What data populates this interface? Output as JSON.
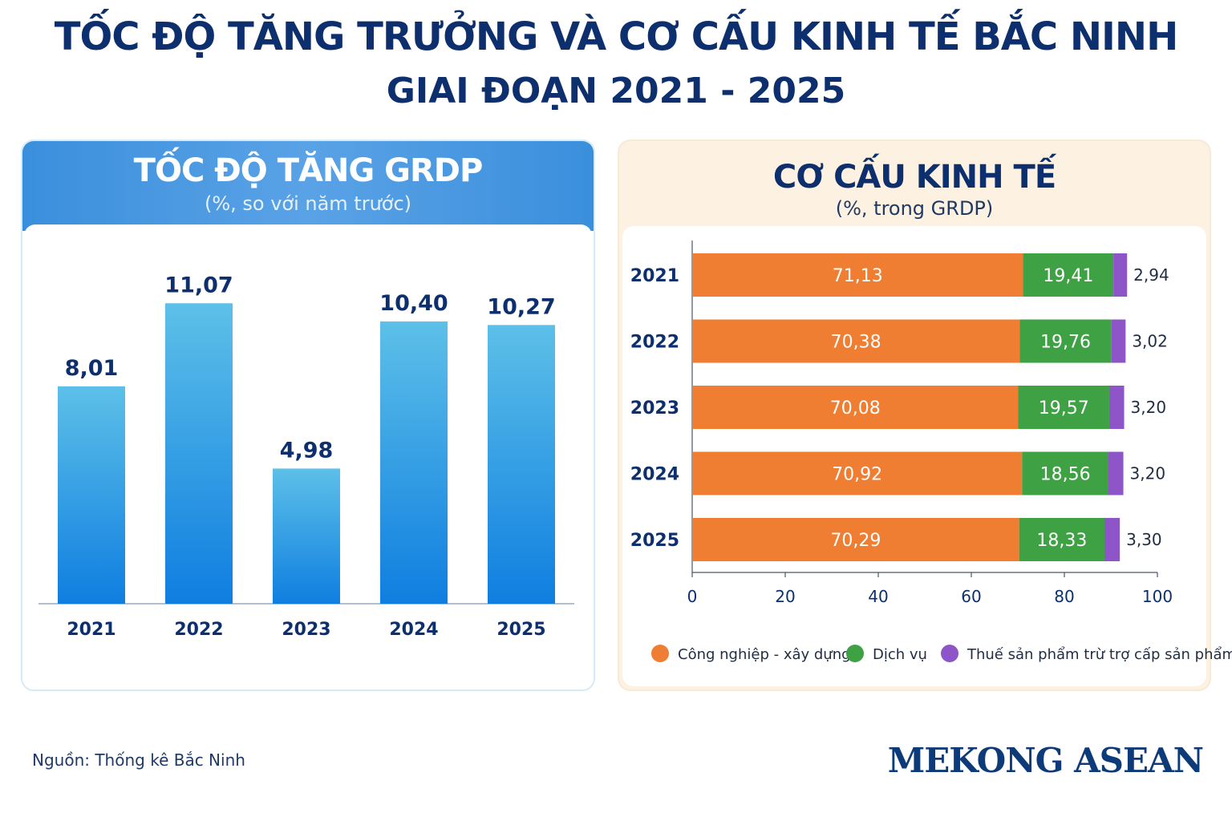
{
  "header": {
    "title": "TỐC ĐỘ TĂNG TRƯỞNG VÀ CƠ CẤU KINH TẾ BẮC NINH",
    "subtitle": "GIAI ĐOẠN 2021 - 2025"
  },
  "colors": {
    "navy": "#0d2f6e",
    "bar_top": "#5dc0e8",
    "bar_bottom": "#0f7ee0",
    "industry": "#ef7d32",
    "services": "#3ea244",
    "tax": "#8e55c9"
  },
  "chart_data": [
    {
      "type": "bar",
      "title": "TỐC ĐỘ TĂNG GRDP",
      "subtitle": "(%, so với năm trước)",
      "categories": [
        "2021",
        "2022",
        "2023",
        "2024",
        "2025"
      ],
      "values": [
        8.01,
        11.07,
        4.98,
        10.4,
        10.27
      ],
      "value_labels": [
        "8,01",
        "11,07",
        "4,98",
        "10,40",
        "10,27"
      ],
      "ylim": [
        0,
        12.2
      ],
      "grid": false
    },
    {
      "type": "bar",
      "orientation": "horizontal",
      "stacked": true,
      "title": "CƠ CẤU KINH TẾ",
      "subtitle": "(%, trong GRDP)",
      "categories": [
        "2021",
        "2022",
        "2023",
        "2024",
        "2025"
      ],
      "series": [
        {
          "name": "Công nghiệp - xây dựng",
          "values": [
            71.13,
            70.38,
            70.08,
            70.92,
            70.29
          ],
          "labels": [
            "71,13",
            "70,38",
            "70,08",
            "70,92",
            "70,29"
          ]
        },
        {
          "name": "Dịch vụ",
          "values": [
            19.41,
            19.76,
            19.57,
            18.56,
            18.33
          ],
          "labels": [
            "19,41",
            "19,76",
            "19,57",
            "18,56",
            "18,33"
          ]
        },
        {
          "name": "Thuế sản phẩm trừ trợ cấp sản phẩm",
          "values": [
            2.94,
            3.02,
            3.2,
            3.2,
            3.3
          ],
          "labels": [
            "2,94",
            "3,02",
            "3,20",
            "3,20",
            "3,30"
          ]
        }
      ],
      "xlim": [
        0,
        100
      ],
      "xticks": [
        "0",
        "20",
        "40",
        "60",
        "80",
        "100"
      ],
      "legend": "bottom"
    }
  ],
  "footer": {
    "source": "Nguồn: Thống kê Bắc Ninh",
    "brand": "MEKONG ASEAN"
  }
}
